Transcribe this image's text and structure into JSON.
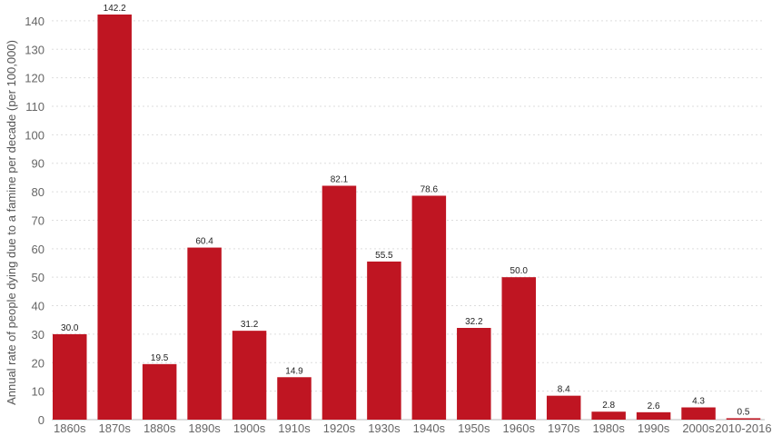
{
  "chart_data": {
    "type": "bar",
    "title": "",
    "xlabel": "",
    "ylabel": "Annual rate of people dying due to a famine per decade (per 100,000)",
    "categories": [
      "1860s",
      "1870s",
      "1880s",
      "1890s",
      "1900s",
      "1910s",
      "1920s",
      "1930s",
      "1940s",
      "1950s",
      "1960s",
      "1970s",
      "1980s",
      "1990s",
      "2000s",
      "2010-2016"
    ],
    "values": [
      30.0,
      142.2,
      19.5,
      60.4,
      31.2,
      14.9,
      82.1,
      55.5,
      78.6,
      32.2,
      50.0,
      8.4,
      2.8,
      2.6,
      4.3,
      0.5
    ],
    "value_labels": [
      "30.0",
      "142.2",
      "19.5",
      "60.4",
      "31.2",
      "14.9",
      "82.1",
      "55.5",
      "78.6",
      "32.2",
      "50.0",
      "8.4",
      "2.8",
      "2.6",
      "4.3",
      "0.5"
    ],
    "yticks": [
      0,
      10,
      20,
      30,
      40,
      50,
      60,
      70,
      80,
      90,
      100,
      110,
      120,
      130,
      140
    ],
    "ytick_labels": [
      "0",
      "10",
      "20",
      "30",
      "40",
      "50",
      "60",
      "70",
      "80",
      "90",
      "100",
      "110",
      "120",
      "130",
      "140"
    ],
    "ylim": [
      0,
      142.2
    ],
    "grid": true,
    "legend": "none",
    "bar_color": "#bf1522"
  }
}
